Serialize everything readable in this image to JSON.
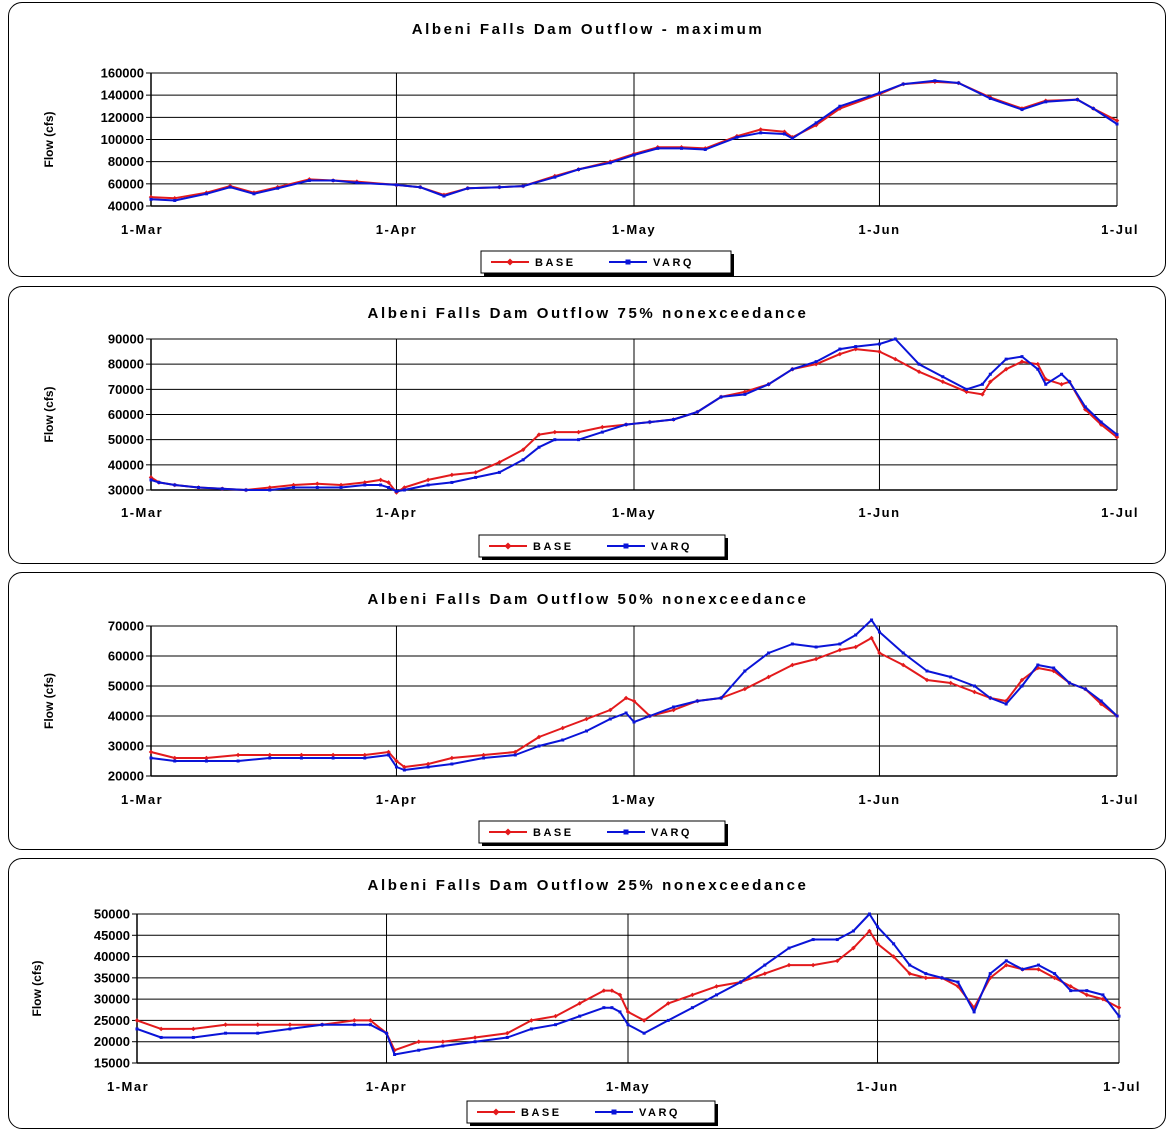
{
  "chart_data": [
    {
      "type": "line",
      "title": "Albeni Falls Dam Outflow - maximum",
      "ylabel": "Flow (cfs)",
      "xlabel": "",
      "x_tick_labels": [
        "1-Mar",
        "1-Apr",
        "1-May",
        "1-Jun",
        "1-Jul"
      ],
      "y_tick_labels": [
        "160000",
        "140000",
        "120000",
        "100000",
        "80000",
        "60000",
        "40000"
      ],
      "ylim": [
        40000,
        160000
      ],
      "grid": true,
      "legend_position": "bottom-center",
      "legend": [
        "BASE",
        "VARQ"
      ],
      "colors": {
        "BASE": "#e31a1c",
        "VARQ": "#0a14d8"
      },
      "x_anchor_days": [
        0,
        31,
        61,
        92,
        122
      ],
      "series": [
        {
          "name": "BASE",
          "days": [
            0,
            3,
            7,
            10,
            13,
            16,
            20,
            23,
            26,
            31,
            34,
            37,
            40,
            44,
            47,
            51,
            54,
            58,
            61,
            64,
            67,
            70,
            74,
            77,
            80,
            81,
            84,
            87,
            92,
            95,
            99,
            102,
            106,
            110,
            113,
            117,
            119,
            122
          ],
          "values": [
            48000,
            47000,
            52000,
            58000,
            52000,
            57000,
            64000,
            63000,
            62000,
            59000,
            57000,
            50000,
            56000,
            57000,
            58000,
            67000,
            73000,
            80000,
            87000,
            93000,
            93000,
            92000,
            103000,
            109000,
            107000,
            102000,
            113000,
            128000,
            141000,
            150000,
            152000,
            151000,
            138000,
            128000,
            135000,
            136000,
            128000,
            117000
          ]
        },
        {
          "name": "VARQ",
          "days": [
            0,
            3,
            7,
            10,
            13,
            16,
            20,
            23,
            26,
            31,
            34,
            37,
            40,
            44,
            47,
            51,
            54,
            58,
            61,
            64,
            67,
            70,
            74,
            77,
            80,
            81,
            84,
            87,
            92,
            95,
            99,
            102,
            106,
            110,
            113,
            117,
            119,
            122
          ],
          "values": [
            46000,
            45000,
            51000,
            57000,
            51000,
            56000,
            63000,
            63000,
            61000,
            59000,
            57000,
            49000,
            56000,
            57000,
            58000,
            66000,
            73000,
            79000,
            86000,
            92000,
            92000,
            91000,
            102000,
            106000,
            105000,
            101000,
            115000,
            130000,
            142000,
            150000,
            153000,
            151000,
            137000,
            127000,
            134000,
            136000,
            128000,
            114000
          ]
        }
      ]
    },
    {
      "type": "line",
      "title": "Albeni Falls Dam Outflow 75% nonexceedance",
      "ylabel": "Flow (cfs)",
      "xlabel": "",
      "x_tick_labels": [
        "1-Mar",
        "1-Apr",
        "1-May",
        "1-Jun",
        "1-Jul"
      ],
      "y_tick_labels": [
        "90000",
        "80000",
        "70000",
        "60000",
        "50000",
        "40000",
        "30000"
      ],
      "ylim": [
        30000,
        90000
      ],
      "grid": true,
      "legend_position": "bottom-center",
      "legend": [
        "BASE",
        "VARQ"
      ],
      "colors": {
        "BASE": "#e31a1c",
        "VARQ": "#0a14d8"
      },
      "x_anchor_days": [
        0,
        31,
        61,
        92,
        122
      ],
      "series": [
        {
          "name": "BASE",
          "days": [
            0,
            1,
            3,
            6,
            9,
            12,
            15,
            18,
            21,
            24,
            27,
            29,
            30,
            31,
            32,
            35,
            38,
            41,
            44,
            47,
            49,
            51,
            54,
            57,
            60,
            63,
            66,
            69,
            72,
            75,
            78,
            81,
            84,
            87,
            89,
            92,
            94,
            97,
            100,
            103,
            105,
            106,
            108,
            110,
            112,
            113,
            115,
            116,
            118,
            120,
            122
          ],
          "values": [
            35000,
            33000,
            32000,
            31000,
            30500,
            30000,
            31000,
            32000,
            32500,
            32000,
            33000,
            34000,
            33000,
            29000,
            31000,
            34000,
            36000,
            37000,
            41000,
            46000,
            52000,
            53000,
            53000,
            55000,
            56000,
            57000,
            58000,
            61000,
            67000,
            69000,
            72000,
            78000,
            80000,
            84000,
            86000,
            85000,
            82000,
            77000,
            73000,
            69000,
            68000,
            73000,
            78000,
            81000,
            80000,
            74000,
            72000,
            73000,
            62000,
            56000,
            51000
          ]
        },
        {
          "name": "VARQ",
          "days": [
            0,
            1,
            3,
            6,
            9,
            12,
            15,
            18,
            21,
            24,
            27,
            29,
            30,
            31,
            32,
            35,
            38,
            41,
            44,
            47,
            49,
            51,
            54,
            57,
            60,
            63,
            66,
            69,
            72,
            75,
            78,
            81,
            84,
            87,
            89,
            92,
            94,
            97,
            100,
            103,
            105,
            106,
            108,
            110,
            112,
            113,
            115,
            116,
            118,
            120,
            122
          ],
          "values": [
            34000,
            33000,
            32000,
            31000,
            30500,
            30000,
            30000,
            31000,
            31000,
            31000,
            32000,
            32000,
            31000,
            29500,
            30000,
            32000,
            33000,
            35000,
            37000,
            42000,
            47000,
            50000,
            50000,
            53000,
            56000,
            57000,
            58000,
            61000,
            67000,
            68000,
            72000,
            78000,
            81000,
            86000,
            87000,
            88000,
            90000,
            80000,
            75000,
            70000,
            72000,
            76000,
            82000,
            83000,
            78000,
            72000,
            76000,
            73000,
            63000,
            57000,
            52000
          ]
        }
      ]
    },
    {
      "type": "line",
      "title": "Albeni Falls Dam Outflow 50% nonexceedance",
      "ylabel": "Flow (cfs)",
      "xlabel": "",
      "x_tick_labels": [
        "1-Mar",
        "1-Apr",
        "1-May",
        "1-Jun",
        "1-Jul"
      ],
      "y_tick_labels": [
        "70000",
        "60000",
        "50000",
        "40000",
        "30000",
        "20000"
      ],
      "ylim": [
        20000,
        70000
      ],
      "grid": true,
      "legend_position": "bottom-center",
      "legend": [
        "BASE",
        "VARQ"
      ],
      "colors": {
        "BASE": "#e31a1c",
        "VARQ": "#0a14d8"
      },
      "x_anchor_days": [
        0,
        31,
        61,
        92,
        122
      ],
      "series": [
        {
          "name": "BASE",
          "days": [
            0,
            3,
            7,
            11,
            15,
            19,
            23,
            27,
            30,
            31,
            32,
            35,
            38,
            42,
            46,
            49,
            52,
            55,
            58,
            60,
            61,
            63,
            66,
            69,
            72,
            75,
            78,
            81,
            84,
            87,
            89,
            91,
            92,
            95,
            98,
            101,
            104,
            106,
            108,
            110,
            112,
            114,
            116,
            118,
            120,
            122
          ],
          "values": [
            28000,
            26000,
            26000,
            27000,
            27000,
            27000,
            27000,
            27000,
            28000,
            25000,
            23000,
            24000,
            26000,
            27000,
            28000,
            33000,
            36000,
            39000,
            42000,
            46000,
            45000,
            40000,
            42000,
            45000,
            46000,
            49000,
            53000,
            57000,
            59000,
            62000,
            63000,
            66000,
            61000,
            57000,
            52000,
            51000,
            48000,
            46000,
            45000,
            52000,
            56000,
            55000,
            51000,
            49000,
            44000,
            40000
          ]
        },
        {
          "name": "VARQ",
          "days": [
            0,
            3,
            7,
            11,
            15,
            19,
            23,
            27,
            30,
            31,
            32,
            35,
            38,
            42,
            46,
            49,
            52,
            55,
            58,
            60,
            61,
            63,
            66,
            69,
            72,
            75,
            78,
            81,
            84,
            87,
            89,
            91,
            92,
            95,
            98,
            101,
            104,
            106,
            108,
            110,
            112,
            114,
            116,
            118,
            120,
            122
          ],
          "values": [
            26000,
            25000,
            25000,
            25000,
            26000,
            26000,
            26000,
            26000,
            27000,
            23000,
            22000,
            23000,
            24000,
            26000,
            27000,
            30000,
            32000,
            35000,
            39000,
            41000,
            38000,
            40000,
            43000,
            45000,
            46000,
            55000,
            61000,
            64000,
            63000,
            64000,
            67000,
            72000,
            68000,
            61000,
            55000,
            53000,
            50000,
            46000,
            44000,
            50000,
            57000,
            56000,
            51000,
            49000,
            45000,
            40000
          ]
        }
      ]
    },
    {
      "type": "line",
      "title": "Albeni Falls Dam Outflow 25% nonexceedance",
      "ylabel": "Flow (cfs)",
      "xlabel": "",
      "x_tick_labels": [
        "1-Mar",
        "1-Apr",
        "1-May",
        "1-Jun",
        "1-Jul"
      ],
      "y_tick_labels": [
        "50000",
        "45000",
        "40000",
        "35000",
        "30000",
        "25000",
        "20000",
        "15000"
      ],
      "ylim": [
        15000,
        50000
      ],
      "grid": true,
      "legend_position": "bottom-center",
      "legend": [
        "BASE",
        "VARQ"
      ],
      "colors": {
        "BASE": "#e31a1c",
        "VARQ": "#0a14d8"
      },
      "x_anchor_days": [
        0,
        31,
        61,
        92,
        122
      ],
      "series": [
        {
          "name": "BASE",
          "days": [
            0,
            3,
            7,
            11,
            15,
            19,
            23,
            27,
            29,
            31,
            32,
            35,
            38,
            42,
            46,
            49,
            52,
            55,
            58,
            59,
            60,
            61,
            63,
            66,
            69,
            72,
            75,
            78,
            81,
            84,
            87,
            89,
            91,
            92,
            94,
            96,
            98,
            100,
            102,
            104,
            106,
            108,
            110,
            112,
            114,
            116,
            118,
            120,
            122
          ],
          "values": [
            25000,
            23000,
            23000,
            24000,
            24000,
            24000,
            24000,
            25000,
            25000,
            22000,
            18000,
            20000,
            20000,
            21000,
            22000,
            25000,
            26000,
            29000,
            32000,
            32000,
            31000,
            27000,
            25000,
            29000,
            31000,
            33000,
            34000,
            36000,
            38000,
            38000,
            39000,
            42000,
            46000,
            43000,
            40000,
            36000,
            35000,
            35000,
            33000,
            28000,
            35000,
            38000,
            37000,
            37000,
            35000,
            33000,
            31000,
            30000,
            28000
          ]
        },
        {
          "name": "VARQ",
          "days": [
            0,
            3,
            7,
            11,
            15,
            19,
            23,
            27,
            29,
            31,
            32,
            35,
            38,
            42,
            46,
            49,
            52,
            55,
            58,
            59,
            60,
            61,
            63,
            66,
            69,
            72,
            75,
            78,
            81,
            84,
            87,
            89,
            91,
            92,
            94,
            96,
            98,
            100,
            102,
            104,
            106,
            108,
            110,
            112,
            114,
            116,
            118,
            120,
            122
          ],
          "values": [
            23000,
            21000,
            21000,
            22000,
            22000,
            23000,
            24000,
            24000,
            24000,
            22000,
            17000,
            18000,
            19000,
            20000,
            21000,
            23000,
            24000,
            26000,
            28000,
            28000,
            27000,
            24000,
            22000,
            25000,
            28000,
            31000,
            34000,
            38000,
            42000,
            44000,
            44000,
            46000,
            50000,
            47000,
            43000,
            38000,
            36000,
            35000,
            34000,
            27000,
            36000,
            39000,
            37000,
            38000,
            36000,
            32000,
            32000,
            31000,
            26000
          ]
        }
      ]
    }
  ]
}
